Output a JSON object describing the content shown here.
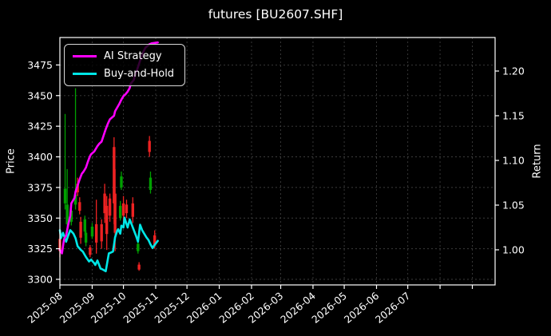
{
  "title": "futures [BU2607.SHF]",
  "colors": {
    "background": "#000000",
    "text": "#ffffff",
    "grid": "#3c3c3c",
    "spine": "#ffffff",
    "candle_up_green": "#00a000",
    "candle_down_red": "#ee2222",
    "ai_strategy": "#ff00ff",
    "buy_and_hold": "#00e6e6"
  },
  "chart_data": {
    "type": "candlestick+line",
    "title": "futures [BU2607.SHF]",
    "ylabel_left": "Price",
    "ylabel_right": "Return",
    "legend_position": "upper-left",
    "grid": "dashed",
    "price_axis_ticks": [
      3300,
      3325,
      3350,
      3375,
      3400,
      3425,
      3450,
      3475
    ],
    "return_axis_ticks": [
      1.0,
      1.05,
      1.1,
      1.15,
      1.2
    ],
    "x_tick_labels": [
      "2025-08",
      "2025-09",
      "2025-10",
      "2025-11",
      "2025-12",
      "2026-01",
      "2026-02",
      "2026-03",
      "2026-04",
      "2026-05",
      "2026-06",
      "2026-07"
    ],
    "candles": [
      {
        "date": "2025-08-01",
        "color": "red",
        "open": 3333,
        "high": 3338,
        "low": 3318,
        "close": 3323
      },
      {
        "date": "2025-08-06",
        "color": "green",
        "open": 3362,
        "high": 3435,
        "low": 3357,
        "close": 3374
      },
      {
        "date": "2025-08-08",
        "color": "green",
        "open": 3345,
        "high": 3390,
        "low": 3342,
        "close": 3361
      },
      {
        "date": "2025-08-12",
        "color": "green",
        "open": 3347,
        "high": 3362,
        "low": 3344,
        "close": 3356
      },
      {
        "date": "2025-08-16",
        "color": "green",
        "open": 3361,
        "high": 3456,
        "low": 3357,
        "close": 3369
      },
      {
        "date": "2025-08-18",
        "color": "red",
        "open": 3378,
        "high": 3383,
        "low": 3368,
        "close": 3371
      },
      {
        "date": "2025-08-20",
        "color": "red",
        "open": 3363,
        "high": 3367,
        "low": 3353,
        "close": 3356
      },
      {
        "date": "2025-08-21",
        "color": "red",
        "open": 3347,
        "high": 3351,
        "low": 3329,
        "close": 3334
      },
      {
        "date": "2025-08-25",
        "color": "green",
        "open": 3339,
        "high": 3352,
        "low": 3336,
        "close": 3349
      },
      {
        "date": "2025-08-26",
        "color": "green",
        "open": 3330,
        "high": 3340,
        "low": 3327,
        "close": 3338
      },
      {
        "date": "2025-08-30",
        "color": "red",
        "open": 3326,
        "high": 3328,
        "low": 3318,
        "close": 3320
      },
      {
        "date": "2025-09-01",
        "color": "green",
        "open": 3335,
        "high": 3346,
        "low": 3333,
        "close": 3343
      },
      {
        "date": "2025-09-05",
        "color": "red",
        "open": 3345,
        "high": 3365,
        "low": 3321,
        "close": 3330
      },
      {
        "date": "2025-09-10",
        "color": "red",
        "open": 3345,
        "high": 3349,
        "low": 3325,
        "close": 3331
      },
      {
        "date": "2025-09-13",
        "color": "red",
        "open": 3370,
        "high": 3378,
        "low": 3346,
        "close": 3354
      },
      {
        "date": "2025-09-15",
        "color": "red",
        "open": 3360,
        "high": 3368,
        "low": 3324,
        "close": 3337
      },
      {
        "date": "2025-09-18",
        "color": "red",
        "open": 3366,
        "high": 3370,
        "low": 3347,
        "close": 3352
      },
      {
        "date": "2025-09-22",
        "color": "red",
        "open": 3408,
        "high": 3416,
        "low": 3345,
        "close": 3362
      },
      {
        "date": "2025-09-23",
        "color": "red",
        "open": 3370,
        "high": 3390,
        "low": 3323,
        "close": 3338
      },
      {
        "date": "2025-09-28",
        "color": "green",
        "open": 3350,
        "high": 3364,
        "low": 3348,
        "close": 3360
      },
      {
        "date": "2025-09-29",
        "color": "green",
        "open": 3375,
        "high": 3388,
        "low": 3373,
        "close": 3384
      },
      {
        "date": "2025-10-01",
        "color": "red",
        "open": 3362,
        "high": 3368,
        "low": 3347,
        "close": 3352
      },
      {
        "date": "2025-10-04",
        "color": "red",
        "open": 3361,
        "high": 3365,
        "low": 3350,
        "close": 3354
      },
      {
        "date": "2025-10-10",
        "color": "red",
        "open": 3362,
        "high": 3367,
        "low": 3346,
        "close": 3351
      },
      {
        "date": "2025-10-15",
        "color": "green",
        "open": 3323,
        "high": 3331,
        "low": 3321,
        "close": 3329
      },
      {
        "date": "2025-10-16",
        "color": "red",
        "open": 3312,
        "high": 3314,
        "low": 3307,
        "close": 3308
      },
      {
        "date": "2025-10-26",
        "color": "red",
        "open": 3413,
        "high": 3417,
        "low": 3400,
        "close": 3404
      },
      {
        "date": "2025-10-27",
        "color": "green",
        "open": 3373,
        "high": 3388,
        "low": 3370,
        "close": 3383
      },
      {
        "date": "2025-10-31",
        "color": "red",
        "open": 3336,
        "high": 3340,
        "low": 3325,
        "close": 3328
      }
    ],
    "series": [
      {
        "name": "AI Strategy",
        "color": "#ff00ff",
        "axis": "return",
        "points": [
          [
            "2025-08-01",
            1.0
          ],
          [
            "2025-08-03",
            0.996
          ],
          [
            "2025-08-05",
            1.012
          ],
          [
            "2025-08-07",
            1.016
          ],
          [
            "2025-08-09",
            1.028
          ],
          [
            "2025-08-11",
            1.038
          ],
          [
            "2025-08-12",
            1.052
          ],
          [
            "2025-08-15",
            1.058
          ],
          [
            "2025-08-16",
            1.065
          ],
          [
            "2025-08-18",
            1.072
          ],
          [
            "2025-08-20",
            1.079
          ],
          [
            "2025-08-22",
            1.085
          ],
          [
            "2025-08-24",
            1.088
          ],
          [
            "2025-08-26",
            1.092
          ],
          [
            "2025-08-28",
            1.099
          ],
          [
            "2025-08-30",
            1.105
          ],
          [
            "2025-08-31",
            1.107
          ],
          [
            "2025-09-03",
            1.11
          ],
          [
            "2025-09-04",
            1.112
          ],
          [
            "2025-09-06",
            1.116
          ],
          [
            "2025-09-08",
            1.119
          ],
          [
            "2025-09-10",
            1.121
          ],
          [
            "2025-09-12",
            1.128
          ],
          [
            "2025-09-14",
            1.135
          ],
          [
            "2025-09-16",
            1.141
          ],
          [
            "2025-09-18",
            1.146
          ],
          [
            "2025-09-19",
            1.147
          ],
          [
            "2025-09-22",
            1.15
          ],
          [
            "2025-09-23",
            1.155
          ],
          [
            "2025-09-25",
            1.159
          ],
          [
            "2025-09-27",
            1.163
          ],
          [
            "2025-09-29",
            1.168
          ],
          [
            "2025-10-01",
            1.172
          ],
          [
            "2025-10-03",
            1.174
          ],
          [
            "2025-10-05",
            1.177
          ],
          [
            "2025-10-07",
            1.181
          ],
          [
            "2025-10-08",
            1.186
          ],
          [
            "2025-10-11",
            1.19
          ],
          [
            "2025-10-12",
            1.195
          ],
          [
            "2025-10-14",
            1.201
          ],
          [
            "2025-10-16",
            1.208
          ],
          [
            "2025-10-18",
            1.215
          ],
          [
            "2025-10-20",
            1.221
          ],
          [
            "2025-10-22",
            1.226
          ],
          [
            "2025-10-24",
            1.228
          ],
          [
            "2025-10-26",
            1.23
          ],
          [
            "2025-10-28",
            1.231
          ],
          [
            "2025-11-03",
            1.232
          ]
        ]
      },
      {
        "name": "Buy-and-Hold",
        "color": "#00e6e6",
        "axis": "return",
        "points": [
          [
            "2025-08-01",
            1.022
          ],
          [
            "2025-08-02",
            1.013
          ],
          [
            "2025-08-04",
            1.019
          ],
          [
            "2025-08-07",
            1.009
          ],
          [
            "2025-08-09",
            1.016
          ],
          [
            "2025-08-11",
            1.022
          ],
          [
            "2025-08-14",
            1.018
          ],
          [
            "2025-08-16",
            1.013
          ],
          [
            "2025-08-18",
            1.004
          ],
          [
            "2025-08-21",
            1.0
          ],
          [
            "2025-08-23",
            0.998
          ],
          [
            "2025-08-26",
            0.992
          ],
          [
            "2025-08-29",
            0.987
          ],
          [
            "2025-08-31",
            0.989
          ],
          [
            "2025-09-03",
            0.985
          ],
          [
            "2025-09-04",
            0.983
          ],
          [
            "2025-09-06",
            0.988
          ],
          [
            "2025-09-09",
            0.979
          ],
          [
            "2025-09-11",
            0.978
          ],
          [
            "2025-09-14",
            0.976
          ],
          [
            "2025-09-17",
            0.996
          ],
          [
            "2025-09-19",
            0.997
          ],
          [
            "2025-09-21",
            0.998
          ],
          [
            "2025-09-23",
            1.014
          ],
          [
            "2025-09-25",
            1.021
          ],
          [
            "2025-09-26",
            1.023
          ],
          [
            "2025-09-28",
            1.018
          ],
          [
            "2025-09-29",
            1.027
          ],
          [
            "2025-10-01",
            1.025
          ],
          [
            "2025-10-02",
            1.036
          ],
          [
            "2025-10-05",
            1.025
          ],
          [
            "2025-10-07",
            1.034
          ],
          [
            "2025-10-09",
            1.028
          ],
          [
            "2025-10-11",
            1.022
          ],
          [
            "2025-10-13",
            1.016
          ],
          [
            "2025-10-15",
            1.009
          ],
          [
            "2025-10-17",
            1.028
          ],
          [
            "2025-10-19",
            1.022
          ],
          [
            "2025-10-21",
            1.018
          ],
          [
            "2025-10-23",
            1.014
          ],
          [
            "2025-10-25",
            1.011
          ],
          [
            "2025-10-27",
            1.006
          ],
          [
            "2025-10-29",
            1.002
          ],
          [
            "2025-10-30",
            1.004
          ],
          [
            "2025-11-03",
            1.01
          ]
        ]
      }
    ]
  }
}
